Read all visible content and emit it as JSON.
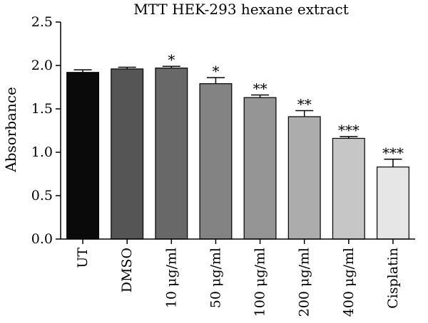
{
  "chart_data": {
    "type": "bar",
    "title": "MTT HEK-293 hexane extract",
    "ylabel": "Absorbance",
    "xlabel": "",
    "ylim": [
      0,
      2.5
    ],
    "yticks": [
      "0.0",
      "0.5",
      "1.0",
      "1.5",
      "2.0",
      "2.5"
    ],
    "ytick_values": [
      0,
      0.5,
      1.0,
      1.5,
      2.0,
      2.5
    ],
    "categories": [
      "UT",
      "DMSO",
      "10 μg/ml",
      "50 μg/ml",
      "100 μg/ml",
      "200 μg/ml",
      "400 μg/ml",
      "Cisplatin"
    ],
    "values": [
      1.92,
      1.96,
      1.97,
      1.79,
      1.63,
      1.41,
      1.16,
      0.83
    ],
    "errors": [
      0.03,
      0.02,
      0.02,
      0.07,
      0.03,
      0.07,
      0.02,
      0.09
    ],
    "significance": [
      "",
      "",
      "*",
      "*",
      "**",
      "**",
      "***",
      "***"
    ],
    "colors": [
      "#0a0a0a",
      "#555555",
      "#686868",
      "#838383",
      "#959595",
      "#acacac",
      "#c6c6c6",
      "#e6e6e6"
    ],
    "grid": false,
    "legend": "none"
  }
}
